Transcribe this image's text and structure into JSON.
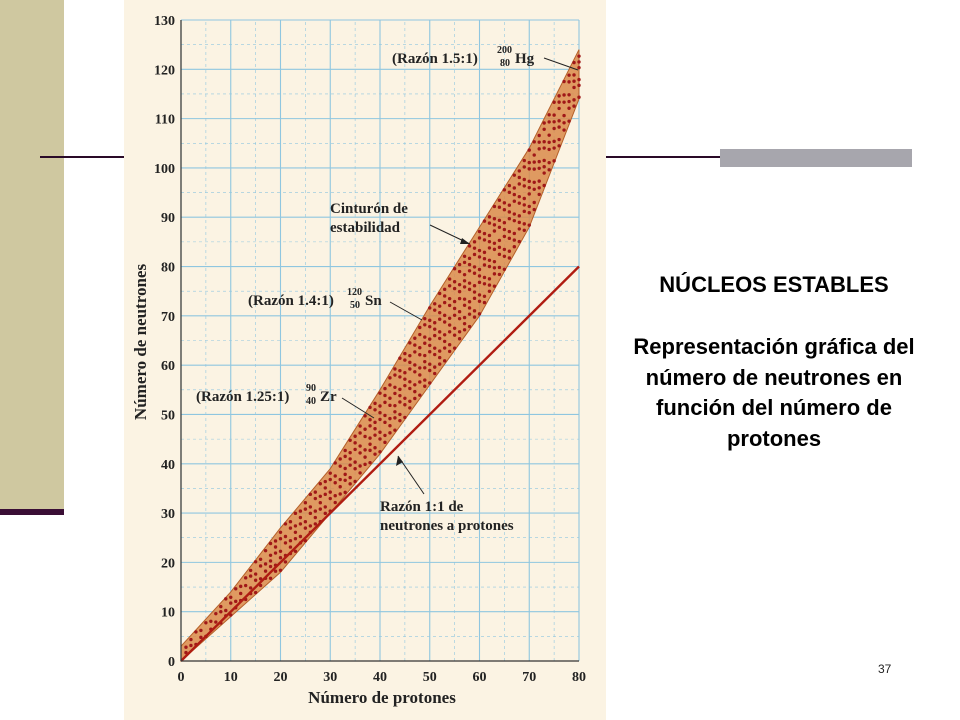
{
  "slide": {
    "title": "NÚCLEOS ESTABLES",
    "description": "Representación gráfica del número de neutrones en función del número de protones",
    "page_number": "37"
  },
  "colors": {
    "band_fill": "#d98a4a",
    "dot": "#a01818",
    "ratio_line": "#b01c12",
    "grid": "#8fc6e0",
    "left_band": "#cfc8a0",
    "accent_bar": "#3a0e35"
  },
  "chart_data": {
    "type": "scatter",
    "xlabel": "Número de protones",
    "ylabel": "Número de neutrones",
    "xlim": [
      0,
      80
    ],
    "ylim": [
      0,
      130
    ],
    "x_ticks": [
      "0",
      "10",
      "20",
      "30",
      "40",
      "50",
      "60",
      "70",
      "80"
    ],
    "y_ticks": [
      "0",
      "10",
      "20",
      "30",
      "40",
      "50",
      "60",
      "70",
      "80",
      "90",
      "100",
      "110",
      "120",
      "130"
    ],
    "grid": true,
    "stability_belt": {
      "label_line1": "Cinturón de",
      "label_line2": "estabilidad",
      "lower": [
        [
          0,
          0
        ],
        [
          10,
          9
        ],
        [
          20,
          18
        ],
        [
          30,
          30
        ],
        [
          40,
          42
        ],
        [
          50,
          56
        ],
        [
          60,
          70
        ],
        [
          70,
          88
        ],
        [
          80,
          114
        ]
      ],
      "upper": [
        [
          0,
          3
        ],
        [
          10,
          14
        ],
        [
          20,
          27
        ],
        [
          30,
          39
        ],
        [
          40,
          55
        ],
        [
          50,
          72
        ],
        [
          60,
          88
        ],
        [
          70,
          104
        ],
        [
          80,
          124
        ]
      ]
    },
    "ratio_line": {
      "label_line1": "Razón 1:1 de",
      "label_line2": "neutrones a protones",
      "points": [
        [
          0,
          0
        ],
        [
          80,
          80
        ]
      ]
    },
    "annotations": [
      {
        "ratio": "(Razón 1.5:1)",
        "mass": "200",
        "atomic": "80",
        "symbol": "Hg",
        "x": 80,
        "y": 120
      },
      {
        "ratio": "(Razón 1.4:1)",
        "mass": "120",
        "atomic": "50",
        "symbol": "Sn",
        "x": 50,
        "y": 70
      },
      {
        "ratio": "(Razón 1.25:1)",
        "mass": "90",
        "atomic": "40",
        "symbol": "Zr",
        "x": 40,
        "y": 50
      }
    ]
  }
}
